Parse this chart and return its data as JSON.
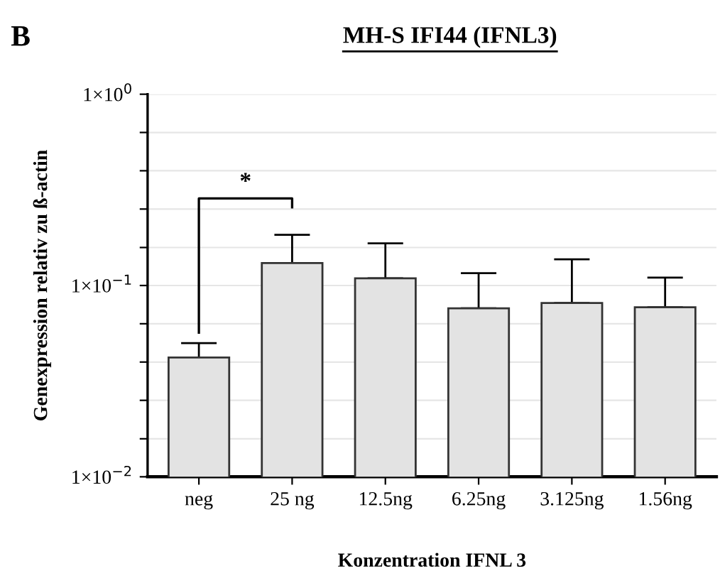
{
  "chart_data": {
    "type": "bar",
    "title": "MH-S IFI44 (IFNL3)",
    "xlabel": "Konzentration IFNL 3",
    "ylabel": "Genexpression relativ zu ß-actin",
    "categories": [
      "neg",
      "25 ng",
      "12.5ng",
      "6.25ng",
      "3.125ng",
      "1.56ng"
    ],
    "values": [
      0.042,
      0.131,
      0.109,
      0.076,
      0.081,
      0.077
    ],
    "errors": [
      [
        0.042,
        0.05
      ],
      [
        0.131,
        0.184
      ],
      [
        0.109,
        0.166
      ],
      [
        0.076,
        0.116
      ],
      [
        0.081,
        0.137
      ],
      [
        0.077,
        0.11
      ]
    ],
    "color": "#e3e3e3",
    "log": "y",
    "ylim": [
      0.01,
      1
    ],
    "yticks": [
      {
        "value": 0.01,
        "label": "1×10$^{−2}$"
      },
      {
        "value": 0.0158,
        "label": null
      },
      {
        "value": 0.0251,
        "label": null
      },
      {
        "value": 0.0398,
        "label": null
      },
      {
        "value": 0.0631,
        "label": null
      },
      {
        "value": 0.1,
        "label": "1×10$^{−1}$"
      },
      {
        "value": 0.158,
        "label": null
      },
      {
        "value": 0.251,
        "label": null
      },
      {
        "value": 0.398,
        "label": null
      },
      {
        "value": 0.631,
        "label": null
      },
      {
        "value": 1,
        "label": "1×10$^{0}$"
      }
    ],
    "grid": "y",
    "annotations": [
      "B",
      "*"
    ]
  }
}
